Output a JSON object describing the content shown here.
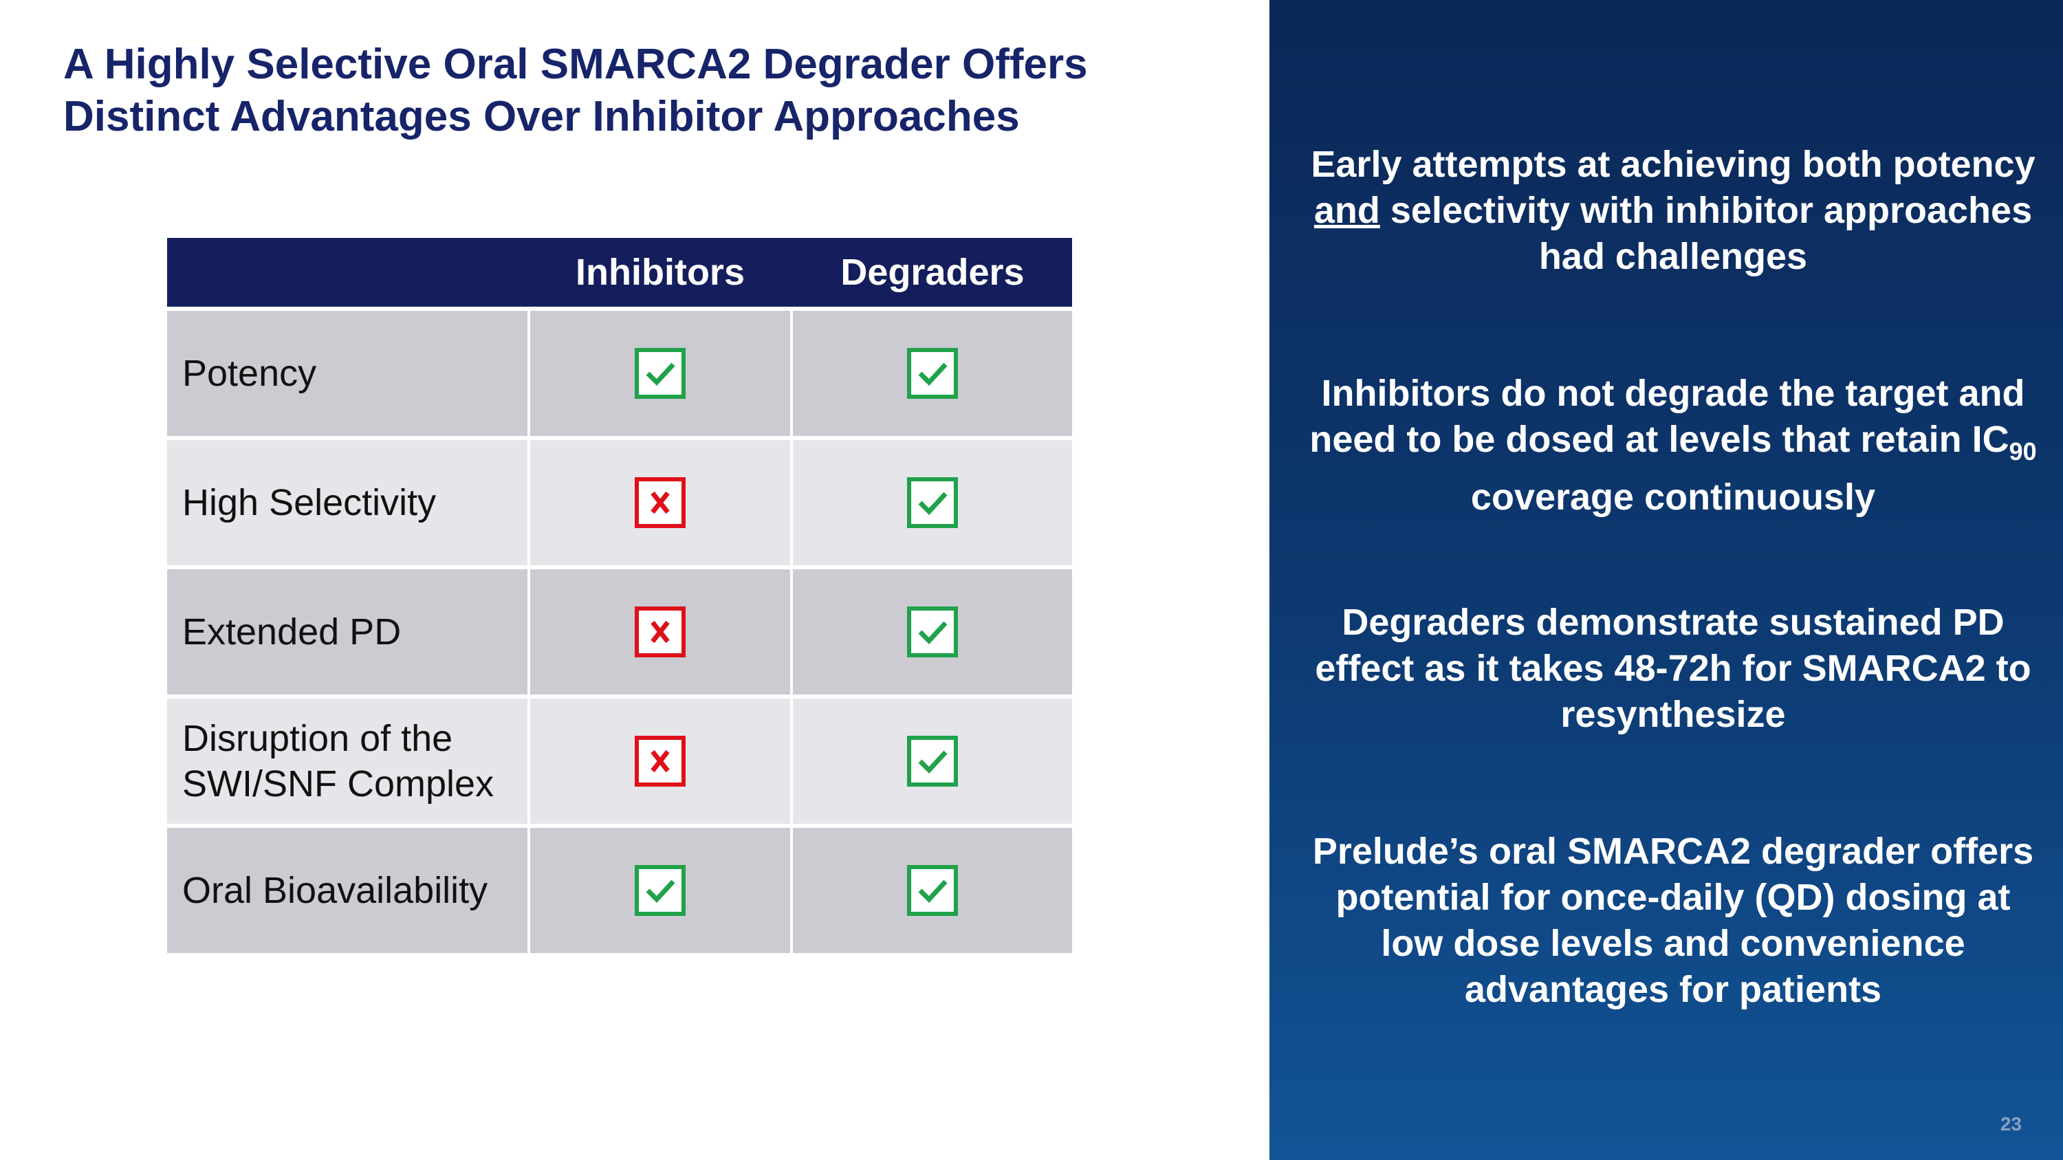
{
  "header": {
    "title_lines": [
      "A Highly Selective Oral SMARCA2 Degrader Offers",
      "Distinct Advantages Over Inhibitor Approaches"
    ]
  },
  "table": {
    "columns": [
      "Inhibitors",
      "Degraders"
    ],
    "rows": [
      {
        "label": "Potency",
        "cells": [
          true,
          true
        ]
      },
      {
        "label": "High Selectivity",
        "cells": [
          false,
          true
        ]
      },
      {
        "label": "Extended PD",
        "cells": [
          false,
          true
        ]
      },
      {
        "label": "Disruption of the SWI/SNF Complex",
        "cells": [
          false,
          true
        ]
      },
      {
        "label": "Oral Bioavailability",
        "cells": [
          true,
          true
        ]
      }
    ]
  },
  "panel": {
    "paragraphs": [
      {
        "spans": [
          {
            "text": "Early attempts at achieving both potency "
          },
          {
            "text": "and",
            "style": "underline"
          },
          {
            "text": " selectivity with inhibitor approaches had challenges"
          }
        ]
      },
      {
        "spans": [
          {
            "text": "Inhibitors do not degrade the target and need to be dosed at levels that retain IC"
          },
          {
            "text": "90",
            "style": "subscript"
          },
          {
            "text": " coverage continuously"
          }
        ]
      },
      {
        "spans": [
          {
            "text": "Degraders demonstrate sustained PD effect as it takes 48-72h for SMARCA2 to resynthesize"
          }
        ]
      },
      {
        "spans": [
          {
            "text": "Prelude’s oral SMARCA2 degrader offers potential for once-daily (QD) dosing at low dose levels and convenience advantages for patients"
          }
        ]
      }
    ]
  },
  "page_number": "23"
}
